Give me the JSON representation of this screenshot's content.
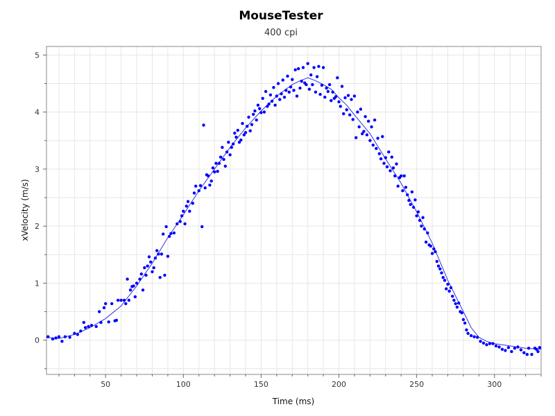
{
  "chart_data": {
    "type": "scatter",
    "title": "MouseTester",
    "subtitle": "400 cpi",
    "xlabel": "Time (ms)",
    "ylabel": "xVelocity (m/s)",
    "xlim": [
      12,
      330
    ],
    "ylim": [
      -0.6,
      5.15
    ],
    "x_ticks": [
      50,
      100,
      150,
      200,
      250,
      300
    ],
    "y_ticks": [
      0,
      1,
      2,
      3,
      4,
      5
    ],
    "grid": true,
    "legend": "none",
    "colors": {
      "points": "#0000ff",
      "line": "#2f2fe0",
      "grid": "#e6e6e6"
    },
    "series": [
      {
        "mode": "markers",
        "points": [
          [
            13,
            0.06
          ],
          [
            16,
            0.02
          ],
          [
            18,
            0.04
          ],
          [
            20,
            0.06
          ],
          [
            22,
            -0.02
          ],
          [
            24,
            0.06
          ],
          [
            27,
            0.05
          ],
          [
            30,
            0.12
          ],
          [
            32,
            0.1
          ],
          [
            34,
            0.16
          ],
          [
            36,
            0.31
          ],
          [
            37,
            0.22
          ],
          [
            39,
            0.24
          ],
          [
            41,
            0.26
          ],
          [
            44,
            0.24
          ],
          [
            46,
            0.5
          ],
          [
            47,
            0.31
          ],
          [
            49,
            0.57
          ],
          [
            50,
            0.64
          ],
          [
            52,
            0.32
          ],
          [
            54,
            0.64
          ],
          [
            56,
            0.34
          ],
          [
            57,
            0.35
          ],
          [
            58,
            0.7
          ],
          [
            60,
            0.7
          ],
          [
            62,
            0.7
          ],
          [
            63,
            0.64
          ],
          [
            64,
            1.07
          ],
          [
            65,
            0.7
          ],
          [
            66,
            0.88
          ],
          [
            67,
            0.94
          ],
          [
            68,
            0.95
          ],
          [
            69,
            0.76
          ],
          [
            70,
            1.0
          ],
          [
            72,
            1.07
          ],
          [
            73,
            1.16
          ],
          [
            74,
            0.88
          ],
          [
            75,
            1.27
          ],
          [
            76,
            1.14
          ],
          [
            77,
            1.3
          ],
          [
            78,
            1.46
          ],
          [
            79,
            1.37
          ],
          [
            80,
            1.2
          ],
          [
            81,
            1.27
          ],
          [
            82,
            1.44
          ],
          [
            83,
            1.57
          ],
          [
            84,
            1.51
          ],
          [
            85,
            1.1
          ],
          [
            86,
            1.51
          ],
          [
            87,
            1.86
          ],
          [
            88,
            1.14
          ],
          [
            89,
            1.99
          ],
          [
            90,
            1.47
          ],
          [
            91,
            1.82
          ],
          [
            92,
            1.87
          ],
          [
            94,
            1.88
          ],
          [
            96,
            2.04
          ],
          [
            98,
            2.08
          ],
          [
            99,
            2.18
          ],
          [
            100,
            2.26
          ],
          [
            101,
            2.04
          ],
          [
            102,
            2.35
          ],
          [
            103,
            2.43
          ],
          [
            104,
            2.26
          ],
          [
            106,
            2.4
          ],
          [
            107,
            2.58
          ],
          [
            108,
            2.7
          ],
          [
            110,
            2.62
          ],
          [
            111,
            2.71
          ],
          [
            112,
            1.99
          ],
          [
            113,
            3.77
          ],
          [
            114,
            2.67
          ],
          [
            115,
            2.9
          ],
          [
            116,
            2.88
          ],
          [
            117,
            2.72
          ],
          [
            118,
            2.79
          ],
          [
            119,
            3.02
          ],
          [
            120,
            2.95
          ],
          [
            121,
            3.1
          ],
          [
            122,
            2.96
          ],
          [
            123,
            3.1
          ],
          [
            124,
            3.21
          ],
          [
            125,
            3.38
          ],
          [
            126,
            3.17
          ],
          [
            127,
            3.05
          ],
          [
            128,
            3.3
          ],
          [
            129,
            3.47
          ],
          [
            130,
            3.25
          ],
          [
            131,
            3.38
          ],
          [
            132,
            3.44
          ],
          [
            133,
            3.63
          ],
          [
            134,
            3.56
          ],
          [
            135,
            3.68
          ],
          [
            136,
            3.47
          ],
          [
            137,
            3.51
          ],
          [
            138,
            3.8
          ],
          [
            139,
            3.6
          ],
          [
            140,
            3.64
          ],
          [
            141,
            3.75
          ],
          [
            142,
            3.91
          ],
          [
            143,
            3.67
          ],
          [
            144,
            3.78
          ],
          [
            145,
            3.96
          ],
          [
            146,
            4.02
          ],
          [
            147,
            3.86
          ],
          [
            148,
            4.12
          ],
          [
            149,
            4.06
          ],
          [
            150,
            3.99
          ],
          [
            151,
            4.24
          ],
          [
            152,
            4.0
          ],
          [
            153,
            4.36
          ],
          [
            154,
            4.1
          ],
          [
            155,
            4.14
          ],
          [
            156,
            4.3
          ],
          [
            157,
            4.19
          ],
          [
            158,
            4.43
          ],
          [
            159,
            4.12
          ],
          [
            160,
            4.28
          ],
          [
            161,
            4.5
          ],
          [
            162,
            4.22
          ],
          [
            163,
            4.32
          ],
          [
            164,
            4.56
          ],
          [
            165,
            4.26
          ],
          [
            166,
            4.38
          ],
          [
            167,
            4.63
          ],
          [
            168,
            4.35
          ],
          [
            169,
            4.44
          ],
          [
            170,
            4.57
          ],
          [
            171,
            4.38
          ],
          [
            172,
            4.74
          ],
          [
            173,
            4.28
          ],
          [
            174,
            4.76
          ],
          [
            175,
            4.42
          ],
          [
            176,
            4.54
          ],
          [
            177,
            4.78
          ],
          [
            178,
            4.51
          ],
          [
            179,
            4.48
          ],
          [
            180,
            4.85
          ],
          [
            181,
            4.4
          ],
          [
            182,
            4.65
          ],
          [
            183,
            4.48
          ],
          [
            184,
            4.78
          ],
          [
            185,
            4.35
          ],
          [
            186,
            4.62
          ],
          [
            187,
            4.8
          ],
          [
            188,
            4.31
          ],
          [
            189,
            4.47
          ],
          [
            190,
            4.78
          ],
          [
            191,
            4.26
          ],
          [
            192,
            4.42
          ],
          [
            193,
            4.36
          ],
          [
            194,
            4.48
          ],
          [
            195,
            4.2
          ],
          [
            196,
            4.35
          ],
          [
            197,
            4.24
          ],
          [
            198,
            4.27
          ],
          [
            199,
            4.6
          ],
          [
            200,
            4.18
          ],
          [
            201,
            4.1
          ],
          [
            202,
            4.45
          ],
          [
            203,
            3.97
          ],
          [
            204,
            4.25
          ],
          [
            205,
            4.04
          ],
          [
            206,
            4.29
          ],
          [
            207,
            3.95
          ],
          [
            208,
            4.22
          ],
          [
            209,
            3.87
          ],
          [
            210,
            4.28
          ],
          [
            211,
            3.55
          ],
          [
            212,
            4.0
          ],
          [
            213,
            3.74
          ],
          [
            214,
            4.05
          ],
          [
            215,
            3.62
          ],
          [
            216,
            3.66
          ],
          [
            217,
            3.92
          ],
          [
            218,
            3.6
          ],
          [
            219,
            3.84
          ],
          [
            220,
            3.5
          ],
          [
            221,
            3.74
          ],
          [
            222,
            3.42
          ],
          [
            223,
            3.86
          ],
          [
            224,
            3.36
          ],
          [
            225,
            3.54
          ],
          [
            226,
            3.27
          ],
          [
            227,
            3.18
          ],
          [
            228,
            3.57
          ],
          [
            229,
            3.1
          ],
          [
            230,
            3.2
          ],
          [
            231,
            3.04
          ],
          [
            232,
            3.3
          ],
          [
            233,
            2.97
          ],
          [
            234,
            3.21
          ],
          [
            235,
            3.02
          ],
          [
            236,
            2.88
          ],
          [
            237,
            3.09
          ],
          [
            238,
            2.7
          ],
          [
            239,
            2.85
          ],
          [
            240,
            2.88
          ],
          [
            241,
            2.62
          ],
          [
            242,
            2.88
          ],
          [
            243,
            2.68
          ],
          [
            244,
            2.55
          ],
          [
            245,
            2.45
          ],
          [
            246,
            2.38
          ],
          [
            247,
            2.6
          ],
          [
            248,
            2.33
          ],
          [
            249,
            2.46
          ],
          [
            250,
            2.18
          ],
          [
            251,
            2.25
          ],
          [
            252,
            2.1
          ],
          [
            253,
            2.0
          ],
          [
            254,
            2.15
          ],
          [
            255,
            1.95
          ],
          [
            256,
            1.72
          ],
          [
            257,
            1.88
          ],
          [
            258,
            1.67
          ],
          [
            259,
            1.65
          ],
          [
            260,
            1.52
          ],
          [
            261,
            1.6
          ],
          [
            262,
            1.55
          ],
          [
            263,
            1.38
          ],
          [
            264,
            1.3
          ],
          [
            265,
            1.25
          ],
          [
            266,
            1.18
          ],
          [
            267,
            1.1
          ],
          [
            268,
            1.05
          ],
          [
            269,
            0.9
          ],
          [
            270,
            0.98
          ],
          [
            271,
            0.86
          ],
          [
            272,
            0.92
          ],
          [
            273,
            0.77
          ],
          [
            274,
            0.7
          ],
          [
            275,
            0.64
          ],
          [
            276,
            0.58
          ],
          [
            277,
            0.65
          ],
          [
            278,
            0.5
          ],
          [
            279,
            0.48
          ],
          [
            280,
            0.36
          ],
          [
            281,
            0.3
          ],
          [
            282,
            0.18
          ],
          [
            283,
            0.12
          ],
          [
            285,
            0.08
          ],
          [
            287,
            0.06
          ],
          [
            289,
            0.05
          ],
          [
            291,
            -0.02
          ],
          [
            293,
            -0.05
          ],
          [
            295,
            -0.08
          ],
          [
            297,
            -0.06
          ],
          [
            299,
            -0.06
          ],
          [
            301,
            -0.1
          ],
          [
            303,
            -0.12
          ],
          [
            305,
            -0.16
          ],
          [
            307,
            -0.18
          ],
          [
            309,
            -0.13
          ],
          [
            311,
            -0.2
          ],
          [
            313,
            -0.14
          ],
          [
            315,
            -0.12
          ],
          [
            317,
            -0.17
          ],
          [
            319,
            -0.22
          ],
          [
            321,
            -0.25
          ],
          [
            322,
            -0.14
          ],
          [
            324,
            -0.25
          ],
          [
            326,
            -0.14
          ],
          [
            327,
            -0.16
          ],
          [
            328,
            -0.2
          ],
          [
            329,
            -0.13
          ]
        ]
      },
      {
        "mode": "line",
        "points": [
          [
            12,
            0.05
          ],
          [
            20,
            0.03
          ],
          [
            30,
            0.1
          ],
          [
            40,
            0.22
          ],
          [
            50,
            0.38
          ],
          [
            60,
            0.6
          ],
          [
            70,
            0.95
          ],
          [
            80,
            1.35
          ],
          [
            90,
            1.8
          ],
          [
            100,
            2.2
          ],
          [
            110,
            2.62
          ],
          [
            120,
            3.0
          ],
          [
            130,
            3.38
          ],
          [
            140,
            3.72
          ],
          [
            150,
            4.02
          ],
          [
            160,
            4.28
          ],
          [
            170,
            4.48
          ],
          [
            175,
            4.55
          ],
          [
            180,
            4.6
          ],
          [
            185,
            4.55
          ],
          [
            190,
            4.48
          ],
          [
            195,
            4.4
          ],
          [
            200,
            4.25
          ],
          [
            205,
            4.12
          ],
          [
            210,
            3.95
          ],
          [
            220,
            3.62
          ],
          [
            230,
            3.18
          ],
          [
            240,
            2.75
          ],
          [
            250,
            2.25
          ],
          [
            260,
            1.7
          ],
          [
            270,
            1.05
          ],
          [
            280,
            0.5
          ],
          [
            285,
            0.22
          ],
          [
            290,
            0.05
          ],
          [
            295,
            -0.02
          ],
          [
            300,
            -0.06
          ],
          [
            310,
            -0.1
          ],
          [
            320,
            -0.14
          ],
          [
            330,
            -0.16
          ]
        ]
      }
    ]
  }
}
